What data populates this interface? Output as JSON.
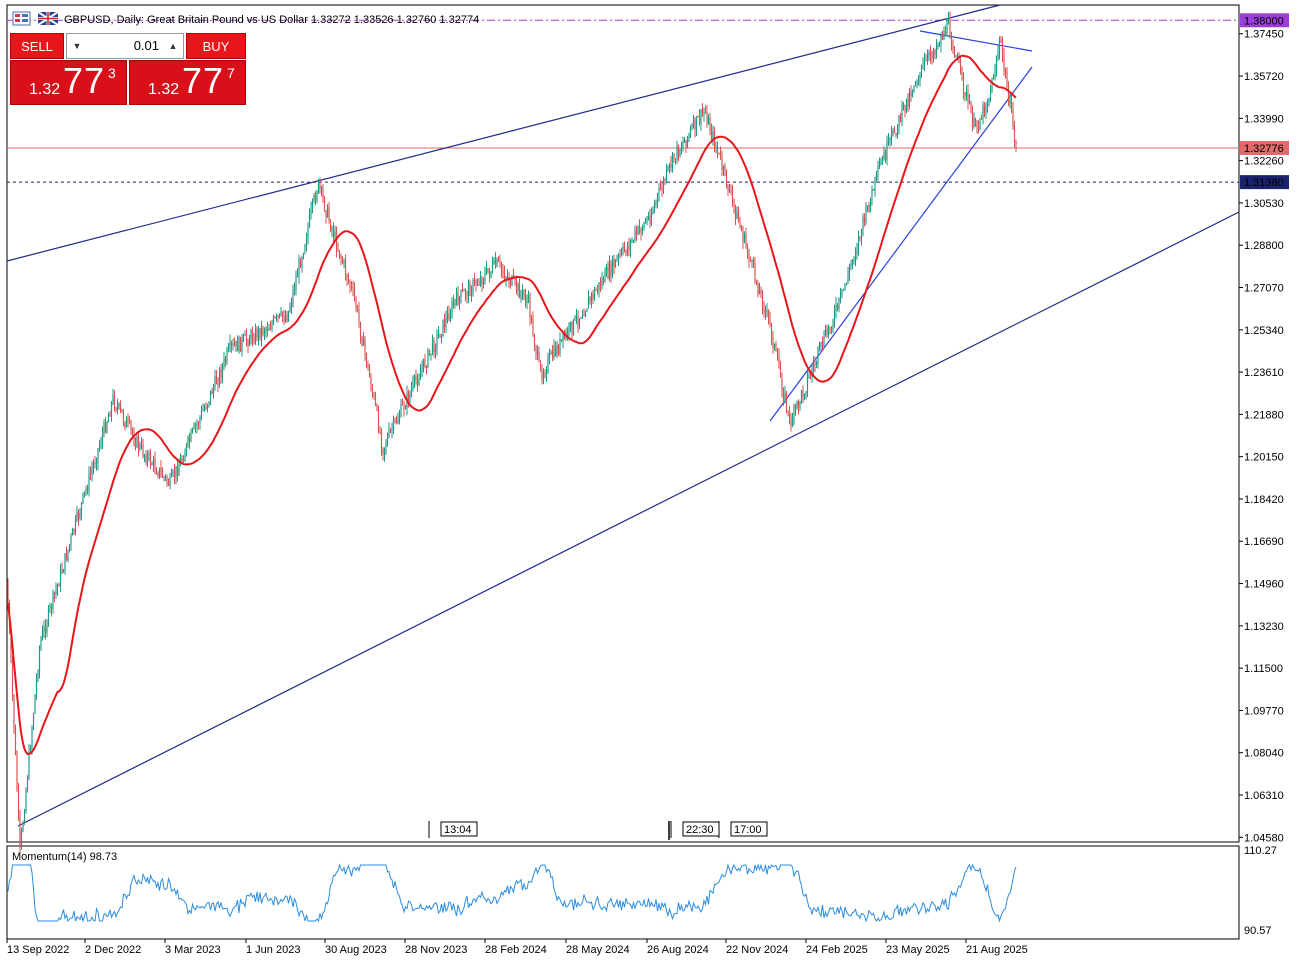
{
  "header": {
    "symbol": "GBPUSD",
    "timeframe": "Daily",
    "description": "Great Britain Pound vs US Dollar",
    "ohlc": "1.33272 1.33526 1.32760 1.32774"
  },
  "trade_panel": {
    "sell_label": "SELL",
    "buy_label": "BUY",
    "lot_value": "0.01",
    "sell_price_prefix": "1.32",
    "sell_price_big": "77",
    "sell_price_sup": "3",
    "buy_price_prefix": "1.32",
    "buy_price_big": "77",
    "buy_price_sup": "7",
    "down_arrow": "▼",
    "up_arrow": "▲"
  },
  "price_axis": {
    "ticks": [
      "1.37450",
      "1.35720",
      "1.33990",
      "1.32260",
      "1.30530",
      "1.28800",
      "1.27070",
      "1.25340",
      "1.23610",
      "1.21880",
      "1.20150",
      "1.18420",
      "1.16690",
      "1.14960",
      "1.13230",
      "1.11500",
      "1.09770",
      "1.08040",
      "1.06310",
      "1.04580"
    ],
    "current_price_label": "1.32776",
    "level_1_label": "1.38000",
    "level_2_label": "1.31380"
  },
  "time_axis": {
    "labels": [
      "13 Sep 2022",
      "2 Dec 2022",
      "3 Mar 2023",
      "1 Jun 2023",
      "30 Aug 2023",
      "28 Nov 2023",
      "28 Feb 2024",
      "28 May 2024",
      "26 Aug 2024",
      "22 Nov 2024",
      "24 Feb 2025",
      "23 May 2025",
      "21 Aug 2025"
    ]
  },
  "event_markers": [
    "13:04",
    "22:30",
    "17:00"
  ],
  "momentum": {
    "title": "Momentum(14) 98.73",
    "max_label": "110.27",
    "min_label": "90.57"
  },
  "colors": {
    "candle_up": "#1e9a8a",
    "candle_down": "#d9534f",
    "ma_line": "#e8151b",
    "trendline": "#1e2a8a",
    "wedge_line": "#2a3fe0",
    "level_purple": "#9b3fd6",
    "level_navy": "#1a2370",
    "current_price": "#e06a6a",
    "momentum_line": "#2b8de0"
  },
  "chart_data": [
    {
      "type": "candlestick",
      "title": "GBPUSD, Daily: Great Britain Pound vs US Dollar",
      "y_axis_range": [
        1.035,
        1.388
      ],
      "x_range": [
        "13 Sep 2022",
        "Oct 2025"
      ],
      "moving_average": "red, approx 50-period",
      "path_points": [
        {
          "date": "13 Sep 2022",
          "price": 1.15
        },
        {
          "date": "26 Sep 2022",
          "price": 1.04
        },
        {
          "date": "15 Oct 2022",
          "price": 1.125
        },
        {
          "date": "2 Dec 2022",
          "price": 1.225
        },
        {
          "date": "Jan 2023",
          "price": 1.205
        },
        {
          "date": "3 Mar 2023",
          "price": 1.19
        },
        {
          "date": "Apr 2023",
          "price": 1.245
        },
        {
          "date": "1 Jun 2023",
          "price": 1.26
        },
        {
          "date": "14 Jul 2023",
          "price": 1.313
        },
        {
          "date": "30 Aug 2023",
          "price": 1.265
        },
        {
          "date": "4 Oct 2023",
          "price": 1.205
        },
        {
          "date": "28 Nov 2023",
          "price": 1.265
        },
        {
          "date": "Dec 2023",
          "price": 1.28
        },
        {
          "date": "28 Feb 2024",
          "price": 1.265
        },
        {
          "date": "Apr 2024",
          "price": 1.235
        },
        {
          "date": "28 May 2024",
          "price": 1.275
        },
        {
          "date": "Jul 2024",
          "price": 1.3
        },
        {
          "date": "26 Aug 2024",
          "price": 1.325
        },
        {
          "date": "26 Sep 2024",
          "price": 1.343
        },
        {
          "date": "22 Nov 2024",
          "price": 1.255
        },
        {
          "date": "13 Jan 2025",
          "price": 1.215
        },
        {
          "date": "24 Feb 2025",
          "price": 1.265
        },
        {
          "date": "Apr 2025",
          "price": 1.32
        },
        {
          "date": "23 May 2025",
          "price": 1.355
        },
        {
          "date": "1 Jul 2025",
          "price": 1.378
        },
        {
          "date": "Aug 2025",
          "price": 1.335
        },
        {
          "date": "21 Aug 2025",
          "price": 1.35
        },
        {
          "date": "17 Sep 2025",
          "price": 1.372
        },
        {
          "date": "Oct 2025",
          "price": 1.328
        }
      ],
      "horizontal_levels": [
        {
          "price": 1.38,
          "style": "dash-dot",
          "color": "purple"
        },
        {
          "price": 1.3138,
          "style": "dashed",
          "color": "navy"
        },
        {
          "price": 1.32776,
          "style": "solid",
          "color": "red",
          "note": "current price"
        }
      ]
    },
    {
      "type": "line",
      "title": "Momentum(14) 98.73",
      "y_axis_range": [
        90.57,
        110.27
      ],
      "series": [
        {
          "name": "Momentum(14)",
          "last_value": 98.73
        }
      ]
    }
  ]
}
